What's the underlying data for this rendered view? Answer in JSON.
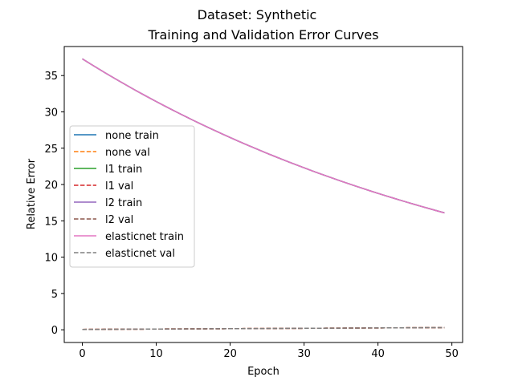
{
  "chart_data": {
    "type": "line",
    "suptitle": "Dataset: Synthetic",
    "title": "Training and Validation Error Curves",
    "xlabel": "Epoch",
    "ylabel": "Relative Error",
    "xlim": [
      -2.45,
      51.45
    ],
    "ylim": [
      -1.75,
      39.0
    ],
    "xticks": [
      "0",
      "10",
      "20",
      "30",
      "40",
      "50"
    ],
    "xtick_values": [
      0,
      10,
      20,
      30,
      40,
      50
    ],
    "yticks": [
      "0",
      "5",
      "10",
      "15",
      "20",
      "25",
      "30",
      "35"
    ],
    "ytick_values": [
      0,
      5,
      10,
      15,
      20,
      25,
      30,
      35
    ],
    "grid": false,
    "legend_position": "center-left",
    "epochs": 50,
    "series": [
      {
        "name": "none train",
        "color": "#1f77b4",
        "style": "solid",
        "start": 37.3,
        "end": 16.1,
        "curve": "exp"
      },
      {
        "name": "none val",
        "color": "#ff7f0e",
        "style": "dashed",
        "start": 0.05,
        "end": 0.3,
        "curve": "linear"
      },
      {
        "name": "l1 train",
        "color": "#2ca02c",
        "style": "solid",
        "start": 37.3,
        "end": 16.1,
        "curve": "exp"
      },
      {
        "name": "l1 val",
        "color": "#d62728",
        "style": "dashed",
        "start": 0.05,
        "end": 0.3,
        "curve": "linear"
      },
      {
        "name": "l2 train",
        "color": "#9467bd",
        "style": "solid",
        "start": 37.3,
        "end": 16.1,
        "curve": "exp"
      },
      {
        "name": "l2 val",
        "color": "#8c564b",
        "style": "dashed",
        "start": 0.05,
        "end": 0.3,
        "curve": "linear"
      },
      {
        "name": "elasticnet train",
        "color": "#e377c2",
        "style": "solid",
        "start": 37.3,
        "end": 16.1,
        "curve": "exp"
      },
      {
        "name": "elasticnet val",
        "color": "#7f7f7f",
        "style": "dashed",
        "start": 0.05,
        "end": 0.3,
        "curve": "linear"
      }
    ]
  }
}
